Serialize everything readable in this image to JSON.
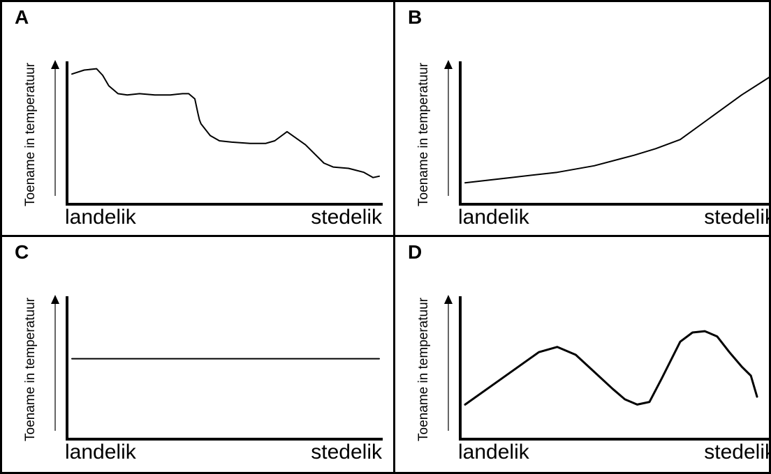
{
  "panels": [
    {
      "letter": "A",
      "ylabel": "Toename in temperatuur",
      "xlabel_left": "landelik",
      "xlabel_right": "stedelik"
    },
    {
      "letter": "B",
      "ylabel": "Toename in temperatuur",
      "xlabel_left": "landelik",
      "xlabel_right": "stedelik"
    },
    {
      "letter": "C",
      "ylabel": "Toename in temperatuur",
      "xlabel_left": "landelik",
      "xlabel_right": "stedelik"
    },
    {
      "letter": "D",
      "ylabel": "Toename in temperatuur",
      "xlabel_left": "landelik",
      "xlabel_right": "stedelik"
    }
  ],
  "chart_data": [
    {
      "type": "line",
      "panel": "A",
      "ylabel": "Toename in temperatuur",
      "x_categories_ends": [
        "landelik",
        "stedelik"
      ],
      "xlim": [
        0,
        100
      ],
      "ylim": [
        0,
        100
      ],
      "series": [
        {
          "x": [
            0,
            4,
            8,
            10,
            12,
            15,
            18,
            22,
            27,
            32,
            36,
            38,
            40,
            41,
            41.5,
            42,
            45,
            48,
            52,
            58,
            63,
            66,
            70,
            76,
            82,
            85,
            90,
            95,
            98,
            100
          ],
          "y": [
            93,
            96,
            97,
            92,
            84,
            78,
            77,
            78,
            77,
            77,
            78,
            78,
            74,
            63,
            58,
            55,
            46,
            42,
            41,
            40,
            40,
            42,
            49,
            39,
            25,
            22,
            21,
            18,
            14,
            15
          ]
        }
      ]
    },
    {
      "type": "line",
      "panel": "B",
      "ylabel": "Toename in temperatuur",
      "x_categories_ends": [
        "landelik",
        "stedelik"
      ],
      "xlim": [
        0,
        100
      ],
      "ylim": [
        0,
        100
      ],
      "series": [
        {
          "x": [
            0,
            15,
            30,
            42,
            55,
            62,
            70,
            80,
            90,
            100
          ],
          "y": [
            10,
            14,
            18,
            23,
            31,
            36,
            43,
            60,
            77,
            92
          ]
        }
      ]
    },
    {
      "type": "line",
      "panel": "C",
      "ylabel": "Toename in temperatuur",
      "x_categories_ends": [
        "landelik",
        "stedelik"
      ],
      "xlim": [
        0,
        100
      ],
      "ylim": [
        0,
        100
      ],
      "series": [
        {
          "x": [
            0,
            100
          ],
          "y": [
            55,
            55
          ]
        }
      ]
    },
    {
      "type": "line",
      "panel": "D",
      "ylabel": "Toename in temperatuur",
      "x_categories_ends": [
        "landelik",
        "stedelik"
      ],
      "xlim": [
        0,
        100
      ],
      "ylim": [
        0,
        100
      ],
      "series": [
        {
          "x": [
            0,
            12,
            24,
            30,
            36,
            42,
            48,
            52,
            56,
            60,
            64,
            70,
            74,
            78,
            82,
            86,
            90,
            93,
            95
          ],
          "y": [
            20,
            40,
            60,
            64,
            58,
            45,
            32,
            24,
            20,
            22,
            40,
            68,
            75,
            76,
            72,
            60,
            49,
            42,
            26
          ]
        }
      ]
    }
  ]
}
